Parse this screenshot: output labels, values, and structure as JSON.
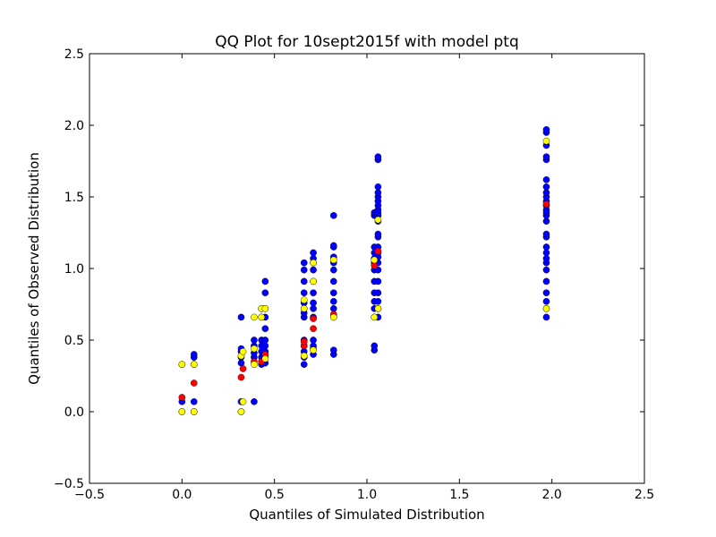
{
  "chart_data": {
    "type": "scatter",
    "title": "QQ Plot for 10sept2015f with model ptq",
    "xlabel": "Quantiles of Simulated Distribution",
    "ylabel": "Quantiles of Observed Distribution",
    "xlim": [
      -0.5,
      2.5
    ],
    "ylim": [
      -0.5,
      2.5
    ],
    "xticks": [
      -0.5,
      0.0,
      0.5,
      1.0,
      1.5,
      2.0,
      2.5
    ],
    "yticks": [
      -0.5,
      0.0,
      0.5,
      1.0,
      1.5,
      2.0,
      2.5
    ],
    "xtick_labels": [
      "−0.5",
      "0.0",
      "0.5",
      "1.0",
      "1.5",
      "2.0",
      "2.5"
    ],
    "ytick_labels": [
      "−0.5",
      "0.0",
      "0.5",
      "1.0",
      "1.5",
      "2.0",
      "2.5"
    ],
    "grid": false,
    "series": [
      {
        "color": "#0000ff",
        "points": [
          [
            0.0,
            0.0
          ],
          [
            0.0,
            0.07
          ],
          [
            0.0,
            0.33
          ],
          [
            0.065,
            0.0
          ],
          [
            0.065,
            0.07
          ],
          [
            0.065,
            0.33
          ],
          [
            0.065,
            0.38
          ],
          [
            0.065,
            0.4
          ],
          [
            0.32,
            0.0
          ],
          [
            0.32,
            0.07
          ],
          [
            0.32,
            0.34
          ],
          [
            0.32,
            0.38
          ],
          [
            0.32,
            0.42
          ],
          [
            0.32,
            0.44
          ],
          [
            0.32,
            0.66
          ],
          [
            0.39,
            0.07
          ],
          [
            0.39,
            0.38
          ],
          [
            0.39,
            0.41
          ],
          [
            0.39,
            0.46
          ],
          [
            0.39,
            0.5
          ],
          [
            0.43,
            0.33
          ],
          [
            0.43,
            0.38
          ],
          [
            0.43,
            0.42
          ],
          [
            0.43,
            0.46
          ],
          [
            0.43,
            0.5
          ],
          [
            0.43,
            0.66
          ],
          [
            0.43,
            0.72
          ],
          [
            0.45,
            0.34
          ],
          [
            0.45,
            0.38
          ],
          [
            0.45,
            0.42
          ],
          [
            0.45,
            0.46
          ],
          [
            0.45,
            0.5
          ],
          [
            0.45,
            0.58
          ],
          [
            0.45,
            0.66
          ],
          [
            0.45,
            0.72
          ],
          [
            0.45,
            0.83
          ],
          [
            0.45,
            0.91
          ],
          [
            0.66,
            0.33
          ],
          [
            0.66,
            0.38
          ],
          [
            0.66,
            0.42
          ],
          [
            0.66,
            0.46
          ],
          [
            0.66,
            0.5
          ],
          [
            0.66,
            0.66
          ],
          [
            0.66,
            0.69
          ],
          [
            0.66,
            0.72
          ],
          [
            0.66,
            0.76
          ],
          [
            0.66,
            0.83
          ],
          [
            0.66,
            0.91
          ],
          [
            0.66,
            0.99
          ],
          [
            0.66,
            1.04
          ],
          [
            0.71,
            0.4
          ],
          [
            0.71,
            0.44
          ],
          [
            0.71,
            0.46
          ],
          [
            0.71,
            0.5
          ],
          [
            0.71,
            0.66
          ],
          [
            0.71,
            0.72
          ],
          [
            0.71,
            0.76
          ],
          [
            0.71,
            0.83
          ],
          [
            0.71,
            0.91
          ],
          [
            0.71,
            0.99
          ],
          [
            0.71,
            1.04
          ],
          [
            0.71,
            1.07
          ],
          [
            0.71,
            1.11
          ],
          [
            0.82,
            0.4
          ],
          [
            0.82,
            0.43
          ],
          [
            0.82,
            0.66
          ],
          [
            0.82,
            0.72
          ],
          [
            0.82,
            0.77
          ],
          [
            0.82,
            0.83
          ],
          [
            0.82,
            0.91
          ],
          [
            0.82,
            0.99
          ],
          [
            0.82,
            1.04
          ],
          [
            0.82,
            1.08
          ],
          [
            0.82,
            1.15
          ],
          [
            0.82,
            1.16
          ],
          [
            0.82,
            1.37
          ],
          [
            1.04,
            0.43
          ],
          [
            1.04,
            0.46
          ],
          [
            1.04,
            0.66
          ],
          [
            1.04,
            0.72
          ],
          [
            1.04,
            0.77
          ],
          [
            1.04,
            0.83
          ],
          [
            1.04,
            0.91
          ],
          [
            1.04,
            0.99
          ],
          [
            1.04,
            1.04
          ],
          [
            1.04,
            1.07
          ],
          [
            1.04,
            1.11
          ],
          [
            1.04,
            1.15
          ],
          [
            1.04,
            1.37
          ],
          [
            1.04,
            1.39
          ],
          [
            1.06,
            0.66
          ],
          [
            1.06,
            0.72
          ],
          [
            1.06,
            0.77
          ],
          [
            1.06,
            0.83
          ],
          [
            1.06,
            0.91
          ],
          [
            1.06,
            0.99
          ],
          [
            1.06,
            1.04
          ],
          [
            1.06,
            1.08
          ],
          [
            1.06,
            1.11
          ],
          [
            1.06,
            1.15
          ],
          [
            1.06,
            1.22
          ],
          [
            1.06,
            1.24
          ],
          [
            1.06,
            1.33
          ],
          [
            1.06,
            1.37
          ],
          [
            1.06,
            1.39
          ],
          [
            1.06,
            1.41
          ],
          [
            1.06,
            1.44
          ],
          [
            1.06,
            1.47
          ],
          [
            1.06,
            1.5
          ],
          [
            1.06,
            1.53
          ],
          [
            1.06,
            1.57
          ],
          [
            1.06,
            1.76
          ],
          [
            1.06,
            1.78
          ],
          [
            1.97,
            0.66
          ],
          [
            1.97,
            0.72
          ],
          [
            1.97,
            0.77
          ],
          [
            1.97,
            0.83
          ],
          [
            1.97,
            0.91
          ],
          [
            1.97,
            0.99
          ],
          [
            1.97,
            1.04
          ],
          [
            1.97,
            1.07
          ],
          [
            1.97,
            1.11
          ],
          [
            1.97,
            1.15
          ],
          [
            1.97,
            1.22
          ],
          [
            1.97,
            1.24
          ],
          [
            1.97,
            1.33
          ],
          [
            1.97,
            1.37
          ],
          [
            1.97,
            1.39
          ],
          [
            1.97,
            1.41
          ],
          [
            1.97,
            1.44
          ],
          [
            1.97,
            1.47
          ],
          [
            1.97,
            1.5
          ],
          [
            1.97,
            1.53
          ],
          [
            1.97,
            1.57
          ],
          [
            1.97,
            1.62
          ],
          [
            1.97,
            1.76
          ],
          [
            1.97,
            1.78
          ],
          [
            1.97,
            1.86
          ],
          [
            1.97,
            1.95
          ],
          [
            1.97,
            1.97
          ]
        ]
      },
      {
        "color": "#ff0000",
        "points": [
          [
            0.0,
            0.1
          ],
          [
            0.065,
            0.2
          ],
          [
            0.32,
            0.24
          ],
          [
            0.33,
            0.3
          ],
          [
            0.39,
            0.35
          ],
          [
            0.43,
            0.35
          ],
          [
            0.45,
            0.4
          ],
          [
            0.66,
            0.46
          ],
          [
            0.66,
            0.49
          ],
          [
            0.71,
            0.58
          ],
          [
            0.71,
            0.65
          ],
          [
            0.82,
            0.68
          ],
          [
            1.04,
            1.02
          ],
          [
            1.06,
            1.12
          ],
          [
            1.97,
            1.45
          ]
        ]
      },
      {
        "color": "#ffff00",
        "points": [
          [
            0.0,
            0.0
          ],
          [
            0.0,
            0.33
          ],
          [
            0.065,
            0.0
          ],
          [
            0.065,
            0.33
          ],
          [
            0.32,
            0.0
          ],
          [
            0.33,
            0.07
          ],
          [
            0.32,
            0.39
          ],
          [
            0.33,
            0.42
          ],
          [
            0.39,
            0.33
          ],
          [
            0.39,
            0.44
          ],
          [
            0.39,
            0.66
          ],
          [
            0.43,
            0.66
          ],
          [
            0.43,
            0.72
          ],
          [
            0.45,
            0.72
          ],
          [
            0.45,
            0.37
          ],
          [
            0.66,
            0.39
          ],
          [
            0.66,
            0.72
          ],
          [
            0.66,
            0.78
          ],
          [
            0.71,
            0.43
          ],
          [
            0.71,
            0.91
          ],
          [
            0.71,
            1.04
          ],
          [
            0.82,
            0.66
          ],
          [
            0.82,
            1.06
          ],
          [
            1.04,
            0.66
          ],
          [
            1.04,
            1.06
          ],
          [
            1.06,
            0.72
          ],
          [
            1.06,
            1.34
          ],
          [
            1.97,
            0.72
          ],
          [
            1.97,
            1.89
          ]
        ]
      }
    ]
  }
}
